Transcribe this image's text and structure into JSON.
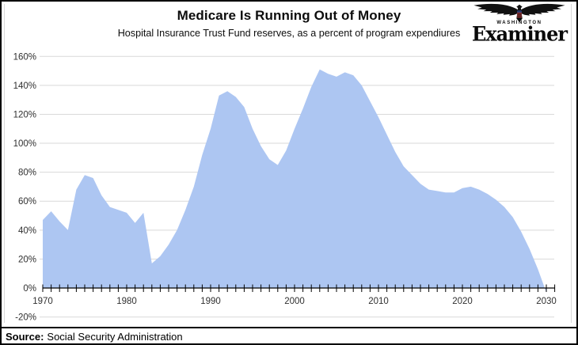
{
  "header": {
    "title": "Medicare Is Running Out of Money",
    "subtitle": "Hospital Insurance Trust Fund reserves, as a percent of program expendiures"
  },
  "logo": {
    "city": "WASHINGTON",
    "masthead": "Examiner",
    "eagle_icon": "eagle-icon"
  },
  "footer": {
    "source_label": "Source:",
    "source_text": "Social Security Administration"
  },
  "chart_data": {
    "type": "area",
    "title": "Medicare Is Running Out of Money",
    "subtitle": "Hospital Insurance Trust Fund reserves, as a percent of program expendiures",
    "x": [
      1970,
      1971,
      1972,
      1973,
      1974,
      1975,
      1976,
      1977,
      1978,
      1979,
      1980,
      1981,
      1982,
      1983,
      1984,
      1985,
      1986,
      1987,
      1988,
      1989,
      1990,
      1991,
      1992,
      1993,
      1994,
      1995,
      1996,
      1997,
      1998,
      1999,
      2000,
      2001,
      2002,
      2003,
      2004,
      2005,
      2006,
      2007,
      2008,
      2009,
      2010,
      2011,
      2012,
      2013,
      2014,
      2015,
      2016,
      2017,
      2018,
      2019,
      2020,
      2021,
      2022,
      2023,
      2024,
      2025,
      2026,
      2027,
      2028,
      2029,
      2030
    ],
    "values": [
      47,
      53,
      46,
      40,
      68,
      78,
      76,
      64,
      56,
      54,
      52,
      45,
      52,
      17,
      22,
      30,
      40,
      54,
      70,
      92,
      110,
      133,
      136,
      132,
      125,
      110,
      98,
      89,
      85,
      95,
      110,
      124,
      139,
      151,
      148,
      146,
      149,
      147,
      140,
      129,
      118,
      106,
      94,
      84,
      78,
      72,
      68,
      67,
      66,
      66,
      69,
      70,
      68,
      65,
      61,
      56,
      49,
      39,
      27,
      13,
      -3
    ],
    "xlabel": "",
    "ylabel": "",
    "ylim": [
      -20,
      160
    ],
    "y_tick_labels": [
      "160%",
      "140%",
      "120%",
      "100%",
      "80%",
      "60%",
      "40%",
      "20%",
      "0%",
      "-20%"
    ],
    "y_tick_values": [
      160,
      140,
      120,
      100,
      80,
      60,
      40,
      20,
      0,
      -20
    ],
    "x_tick_labels": [
      "1970",
      "1980",
      "1990",
      "2000",
      "2010",
      "2020",
      "2030"
    ],
    "x_tick_values": [
      1970,
      1980,
      1990,
      2000,
      2010,
      2020,
      2030
    ],
    "grid": true,
    "legend": false,
    "colors": {
      "area_fill": "#adc6f2",
      "gridline": "#d9d9d9",
      "axis": "#000000",
      "tick_label": "#303030"
    }
  }
}
